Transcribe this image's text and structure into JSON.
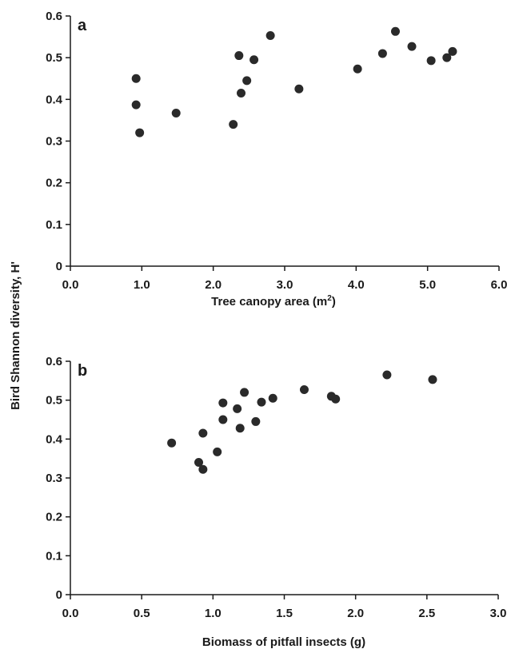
{
  "shared_ylabel": "Bird Shannon diversity, H'",
  "chart_data": [
    {
      "type": "scatter",
      "panel": "a",
      "xlabel": "Tree canopy area (m",
      "xlabel_sup": "2",
      "xlabel_end": ")",
      "ylabel": "Bird Shannon diversity, H'",
      "xlim": [
        0.0,
        6.0
      ],
      "ylim": [
        0,
        0.6
      ],
      "xticks": [
        "0.0",
        "1.0",
        "2.0",
        "3.0",
        "4.0",
        "5.0",
        "6.0"
      ],
      "yticks": [
        "0",
        "0.1",
        "0.2",
        "0.3",
        "0.4",
        "0.5",
        "0.6"
      ],
      "grid": false,
      "points": [
        {
          "x": 0.92,
          "y": 0.45
        },
        {
          "x": 0.92,
          "y": 0.387
        },
        {
          "x": 0.97,
          "y": 0.32
        },
        {
          "x": 1.48,
          "y": 0.367
        },
        {
          "x": 2.28,
          "y": 0.34
        },
        {
          "x": 2.36,
          "y": 0.505
        },
        {
          "x": 2.39,
          "y": 0.415
        },
        {
          "x": 2.47,
          "y": 0.445
        },
        {
          "x": 2.57,
          "y": 0.495
        },
        {
          "x": 2.8,
          "y": 0.553
        },
        {
          "x": 3.2,
          "y": 0.425
        },
        {
          "x": 4.02,
          "y": 0.473
        },
        {
          "x": 4.37,
          "y": 0.51
        },
        {
          "x": 4.55,
          "y": 0.563
        },
        {
          "x": 4.78,
          "y": 0.527
        },
        {
          "x": 5.05,
          "y": 0.493
        },
        {
          "x": 5.27,
          "y": 0.5
        },
        {
          "x": 5.35,
          "y": 0.515
        }
      ]
    },
    {
      "type": "scatter",
      "panel": "b",
      "xlabel": "Biomass of pitfall insects (g)",
      "ylabel": "Bird Shannon diversity, H'",
      "xlim": [
        0.0,
        3.0
      ],
      "ylim": [
        0,
        0.6
      ],
      "xticks": [
        "0.0",
        "0.5",
        "1.0",
        "1.5",
        "2.0",
        "2.5",
        "3.0"
      ],
      "yticks": [
        "0",
        "0.1",
        "0.2",
        "0.3",
        "0.4",
        "0.5",
        "0.6"
      ],
      "grid": false,
      "points": [
        {
          "x": 0.71,
          "y": 0.39
        },
        {
          "x": 0.9,
          "y": 0.34
        },
        {
          "x": 0.93,
          "y": 0.322
        },
        {
          "x": 0.93,
          "y": 0.415
        },
        {
          "x": 1.03,
          "y": 0.367
        },
        {
          "x": 1.07,
          "y": 0.45
        },
        {
          "x": 1.07,
          "y": 0.493
        },
        {
          "x": 1.17,
          "y": 0.478
        },
        {
          "x": 1.19,
          "y": 0.428
        },
        {
          "x": 1.22,
          "y": 0.52
        },
        {
          "x": 1.3,
          "y": 0.445
        },
        {
          "x": 1.34,
          "y": 0.495
        },
        {
          "x": 1.42,
          "y": 0.505
        },
        {
          "x": 1.64,
          "y": 0.527
        },
        {
          "x": 1.83,
          "y": 0.51
        },
        {
          "x": 1.86,
          "y": 0.503
        },
        {
          "x": 2.22,
          "y": 0.565
        },
        {
          "x": 2.54,
          "y": 0.553
        }
      ]
    }
  ]
}
